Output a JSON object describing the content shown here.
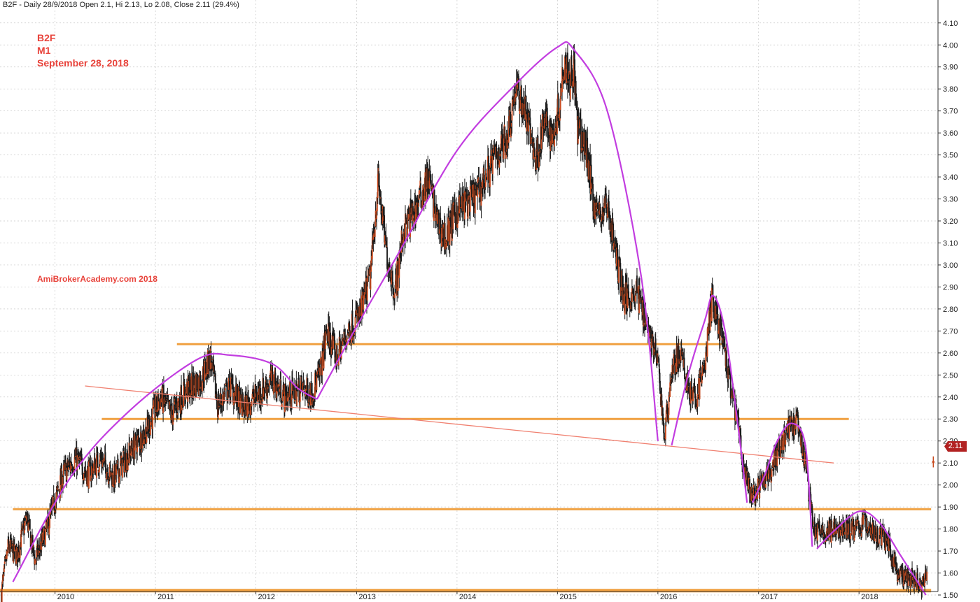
{
  "header": {
    "text": "B2F - Daily 28/9/2018 Open 2.1, Hi 2.13, Lo 2.08, Close 2.11 (29.4%)"
  },
  "overlay": {
    "ticker": "B2F",
    "period": "M1",
    "date": "September 28, 2018",
    "watermark": "AmiBrokerAcademy.com  2018"
  },
  "last_price_label": "2.11",
  "colors": {
    "candles": "#1a1a1a",
    "candle_up": "#c84a1e",
    "support_resistance": "#f0a040",
    "trendline": "#f08070",
    "arcs": "#c23de0",
    "overlay_text": "#e8433b",
    "last_price_badge": "#b22222"
  },
  "chart_data": {
    "type": "candlestick",
    "title": "",
    "xlabel": "",
    "ylabel": "",
    "ylim": [
      1.47,
      4.12
    ],
    "xlim": [
      "2009-06-15",
      "2018-10-15"
    ],
    "grid": true,
    "y_ticks": [
      "1.50",
      "1.60",
      "1.70",
      "1.80",
      "1.90",
      "2.00",
      "2.10",
      "2.20",
      "2.30",
      "2.40",
      "2.50",
      "2.60",
      "2.70",
      "2.80",
      "2.90",
      "3.00",
      "3.10",
      "3.20",
      "3.30",
      "3.40",
      "3.50",
      "3.60",
      "3.70",
      "3.80",
      "3.90",
      "4.00",
      "4.10"
    ],
    "x_ticks": [
      {
        "label": "2010",
        "x": "2010-01-01"
      },
      {
        "label": "2011",
        "x": "2011-01-01"
      },
      {
        "label": "2012",
        "x": "2012-01-01"
      },
      {
        "label": "2013",
        "x": "2013-01-01"
      },
      {
        "label": "2014",
        "x": "2014-01-01"
      },
      {
        "label": "2015",
        "x": "2015-01-01"
      },
      {
        "label": "2016",
        "x": "2016-01-01"
      },
      {
        "label": "2017",
        "x": "2017-01-01"
      },
      {
        "label": "2018",
        "x": "2018-01-01"
      }
    ],
    "price_path": [
      {
        "x": "2009-06-20",
        "y": 1.51
      },
      {
        "x": "2009-07-15",
        "y": 1.72
      },
      {
        "x": "2009-08-15",
        "y": 1.68
      },
      {
        "x": "2009-09-20",
        "y": 1.85
      },
      {
        "x": "2009-10-20",
        "y": 1.66
      },
      {
        "x": "2009-11-25",
        "y": 1.77
      },
      {
        "x": "2009-12-25",
        "y": 1.9
      },
      {
        "x": "2010-02-01",
        "y": 2.05
      },
      {
        "x": "2010-03-15",
        "y": 2.12
      },
      {
        "x": "2010-05-01",
        "y": 2.05
      },
      {
        "x": "2010-06-15",
        "y": 2.12
      },
      {
        "x": "2010-08-01",
        "y": 2.03
      },
      {
        "x": "2010-10-01",
        "y": 2.15
      },
      {
        "x": "2010-12-01",
        "y": 2.25
      },
      {
        "x": "2011-01-20",
        "y": 2.4
      },
      {
        "x": "2011-03-01",
        "y": 2.32
      },
      {
        "x": "2011-04-15",
        "y": 2.42
      },
      {
        "x": "2011-06-15",
        "y": 2.48
      },
      {
        "x": "2011-07-20",
        "y": 2.58
      },
      {
        "x": "2011-08-15",
        "y": 2.36
      },
      {
        "x": "2011-10-01",
        "y": 2.45
      },
      {
        "x": "2011-11-15",
        "y": 2.35
      },
      {
        "x": "2012-01-15",
        "y": 2.42
      },
      {
        "x": "2012-03-01",
        "y": 2.48
      },
      {
        "x": "2012-04-15",
        "y": 2.4
      },
      {
        "x": "2012-06-15",
        "y": 2.44
      },
      {
        "x": "2012-07-20",
        "y": 2.42
      },
      {
        "x": "2012-08-20",
        "y": 2.5
      },
      {
        "x": "2012-09-15",
        "y": 2.7
      },
      {
        "x": "2012-10-20",
        "y": 2.58
      },
      {
        "x": "2012-12-01",
        "y": 2.7
      },
      {
        "x": "2013-01-15",
        "y": 2.78
      },
      {
        "x": "2013-02-20",
        "y": 2.95
      },
      {
        "x": "2013-03-20",
        "y": 3.38
      },
      {
        "x": "2013-04-20",
        "y": 3.05
      },
      {
        "x": "2013-05-20",
        "y": 2.88
      },
      {
        "x": "2013-06-20",
        "y": 3.15
      },
      {
        "x": "2013-08-01",
        "y": 3.25
      },
      {
        "x": "2013-09-20",
        "y": 3.4
      },
      {
        "x": "2013-10-20",
        "y": 3.2
      },
      {
        "x": "2013-11-20",
        "y": 3.12
      },
      {
        "x": "2014-01-01",
        "y": 3.25
      },
      {
        "x": "2014-03-15",
        "y": 3.32
      },
      {
        "x": "2014-05-15",
        "y": 3.48
      },
      {
        "x": "2014-07-01",
        "y": 3.58
      },
      {
        "x": "2014-08-01",
        "y": 3.8
      },
      {
        "x": "2014-09-01",
        "y": 3.72
      },
      {
        "x": "2014-10-15",
        "y": 3.48
      },
      {
        "x": "2014-11-15",
        "y": 3.65
      },
      {
        "x": "2014-12-15",
        "y": 3.58
      },
      {
        "x": "2015-01-10",
        "y": 3.75
      },
      {
        "x": "2015-01-25",
        "y": 3.95
      },
      {
        "x": "2015-02-15",
        "y": 3.85
      },
      {
        "x": "2015-03-01",
        "y": 3.9
      },
      {
        "x": "2015-03-15",
        "y": 3.62
      },
      {
        "x": "2015-04-20",
        "y": 3.5
      },
      {
        "x": "2015-05-10",
        "y": 3.3
      },
      {
        "x": "2015-06-01",
        "y": 3.22
      },
      {
        "x": "2015-07-01",
        "y": 3.28
      },
      {
        "x": "2015-08-01",
        "y": 3.05
      },
      {
        "x": "2015-09-01",
        "y": 2.85
      },
      {
        "x": "2015-10-15",
        "y": 2.88
      },
      {
        "x": "2015-11-20",
        "y": 2.75
      },
      {
        "x": "2016-01-01",
        "y": 2.55
      },
      {
        "x": "2016-01-25",
        "y": 2.22
      },
      {
        "x": "2016-02-20",
        "y": 2.52
      },
      {
        "x": "2016-03-20",
        "y": 2.6
      },
      {
        "x": "2016-04-20",
        "y": 2.45
      },
      {
        "x": "2016-05-15",
        "y": 2.38
      },
      {
        "x": "2016-06-20",
        "y": 2.55
      },
      {
        "x": "2016-07-15",
        "y": 2.85
      },
      {
        "x": "2016-08-15",
        "y": 2.7
      },
      {
        "x": "2016-09-15",
        "y": 2.48
      },
      {
        "x": "2016-10-15",
        "y": 2.3
      },
      {
        "x": "2016-11-10",
        "y": 2.05
      },
      {
        "x": "2016-12-05",
        "y": 1.95
      },
      {
        "x": "2017-01-15",
        "y": 2.0
      },
      {
        "x": "2017-03-01",
        "y": 2.12
      },
      {
        "x": "2017-04-15",
        "y": 2.25
      },
      {
        "x": "2017-05-20",
        "y": 2.28
      },
      {
        "x": "2017-06-20",
        "y": 2.1
      },
      {
        "x": "2017-07-20",
        "y": 1.8
      },
      {
        "x": "2017-09-01",
        "y": 1.78
      },
      {
        "x": "2017-10-15",
        "y": 1.8
      },
      {
        "x": "2017-12-15",
        "y": 1.8
      },
      {
        "x": "2018-01-20",
        "y": 1.83
      },
      {
        "x": "2018-03-01",
        "y": 1.78
      },
      {
        "x": "2018-04-15",
        "y": 1.75
      },
      {
        "x": "2018-05-20",
        "y": 1.6
      },
      {
        "x": "2018-06-20",
        "y": 1.57
      },
      {
        "x": "2018-07-20",
        "y": 1.58
      },
      {
        "x": "2018-08-20",
        "y": 1.55
      },
      {
        "x": "2018-09-05",
        "y": 1.62
      }
    ],
    "last_bar": {
      "x": "2018-09-28",
      "open": 2.1,
      "high": 2.13,
      "low": 2.08,
      "close": 2.11
    },
    "horizontal_levels": [
      {
        "y": 2.64,
        "x_start": "2011-03-20",
        "x_end": "2016-09-01"
      },
      {
        "y": 2.3,
        "x_start": "2010-06-20",
        "x_end": "2017-11-25"
      },
      {
        "y": 1.89,
        "x_start": "2009-08-01",
        "x_end": "2018-09-20"
      },
      {
        "y": 1.52,
        "x_start": "2009-06-15",
        "x_end": "2018-09-20"
      }
    ],
    "trendline": {
      "x1": "2010-04-20",
      "y1": 2.45,
      "x2": "2017-10-01",
      "y2": 2.1
    },
    "arcs": [
      [
        {
          "x": "2009-08-01",
          "y": 1.56
        },
        {
          "x": "2010-03-01",
          "y": 2.04
        },
        {
          "x": "2010-10-01",
          "y": 2.34
        },
        {
          "x": "2011-06-01",
          "y": 2.57
        },
        {
          "x": "2011-10-01",
          "y": 2.59
        },
        {
          "x": "2012-03-01",
          "y": 2.55
        },
        {
          "x": "2012-06-01",
          "y": 2.44
        },
        {
          "x": "2012-08-10",
          "y": 2.39
        }
      ],
      [
        {
          "x": "2012-08-10",
          "y": 2.39
        },
        {
          "x": "2013-01-01",
          "y": 2.72
        },
        {
          "x": "2013-06-01",
          "y": 3.05
        },
        {
          "x": "2014-01-01",
          "y": 3.52
        },
        {
          "x": "2014-08-01",
          "y": 3.82
        },
        {
          "x": "2015-01-01",
          "y": 3.99
        },
        {
          "x": "2015-03-01",
          "y": 3.98
        },
        {
          "x": "2015-07-01",
          "y": 3.7
        },
        {
          "x": "2015-11-01",
          "y": 2.95
        },
        {
          "x": "2016-01-01",
          "y": 2.2
        }
      ],
      [
        {
          "x": "2016-02-20",
          "y": 2.18
        },
        {
          "x": "2016-04-20",
          "y": 2.5
        },
        {
          "x": "2016-06-20",
          "y": 2.75
        },
        {
          "x": "2016-07-20",
          "y": 2.86
        },
        {
          "x": "2016-09-01",
          "y": 2.7
        },
        {
          "x": "2016-10-20",
          "y": 2.25
        },
        {
          "x": "2016-11-20",
          "y": 1.92
        }
      ],
      [
        {
          "x": "2016-12-10",
          "y": 1.92
        },
        {
          "x": "2017-01-25",
          "y": 2.05
        },
        {
          "x": "2017-03-10",
          "y": 2.2
        },
        {
          "x": "2017-05-01",
          "y": 2.28
        },
        {
          "x": "2017-06-20",
          "y": 2.18
        },
        {
          "x": "2017-07-15",
          "y": 1.72
        }
      ],
      [
        {
          "x": "2017-08-01",
          "y": 1.71
        },
        {
          "x": "2017-10-01",
          "y": 1.79
        },
        {
          "x": "2018-01-01",
          "y": 1.88
        },
        {
          "x": "2018-03-15",
          "y": 1.83
        },
        {
          "x": "2018-06-01",
          "y": 1.68
        },
        {
          "x": "2018-09-01",
          "y": 1.5
        }
      ]
    ]
  }
}
